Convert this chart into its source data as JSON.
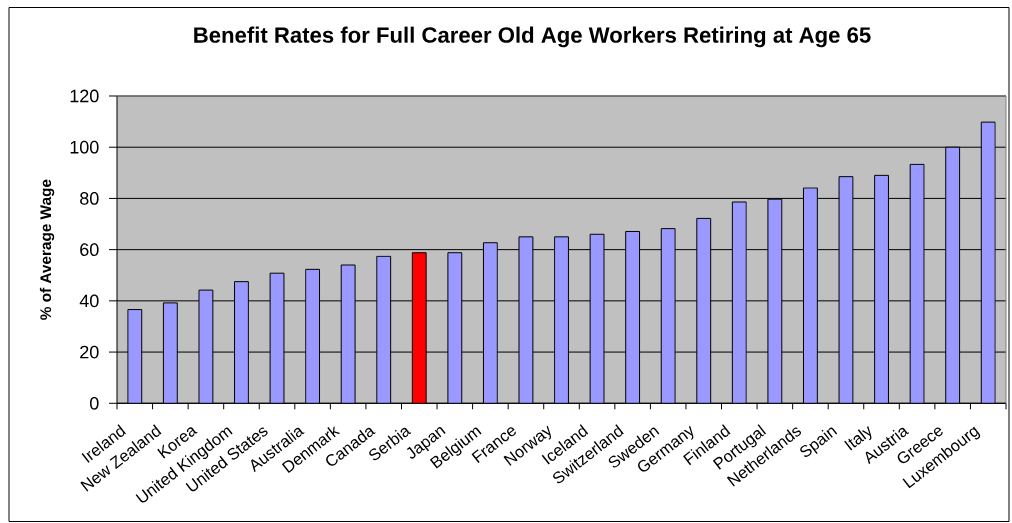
{
  "chart_data": {
    "type": "bar",
    "title": "Benefit Rates for Full Career Old Age Workers Retiring at Age 65",
    "ylabel": "% of Average Wage",
    "categories": [
      "Ireland",
      "New Zealand",
      "Korea",
      "United Kingdom",
      "United States",
      "Australia",
      "Denmark",
      "Canada",
      "Serbia",
      "Japan",
      "Belgium",
      "France",
      "Norway",
      "Iceland",
      "Switzerland",
      "Sweden",
      "Germany",
      "Finland",
      "Portugal",
      "Netherlands",
      "Spain",
      "Italy",
      "Austria",
      "Greece",
      "Luxembourg"
    ],
    "values": [
      36.6,
      39.2,
      44.2,
      47.5,
      50.8,
      52.3,
      54.0,
      57.4,
      58.8,
      58.8,
      62.7,
      65.0,
      65.0,
      66.0,
      67.1,
      68.2,
      72.2,
      78.6,
      79.7,
      84.1,
      88.5,
      89.0,
      93.3,
      100.0,
      109.8
    ],
    "colors": [
      "#9999ff",
      "#9999ff",
      "#9999ff",
      "#9999ff",
      "#9999ff",
      "#9999ff",
      "#9999ff",
      "#9999ff",
      "#ff0000",
      "#9999ff",
      "#9999ff",
      "#9999ff",
      "#9999ff",
      "#9999ff",
      "#9999ff",
      "#9999ff",
      "#9999ff",
      "#9999ff",
      "#9999ff",
      "#9999ff",
      "#9999ff",
      "#9999ff",
      "#9999ff",
      "#9999ff",
      "#9999ff"
    ],
    "ylim": [
      0,
      120
    ],
    "yticks": [
      0,
      20,
      40,
      60,
      80,
      100,
      120
    ],
    "grid": "y"
  }
}
